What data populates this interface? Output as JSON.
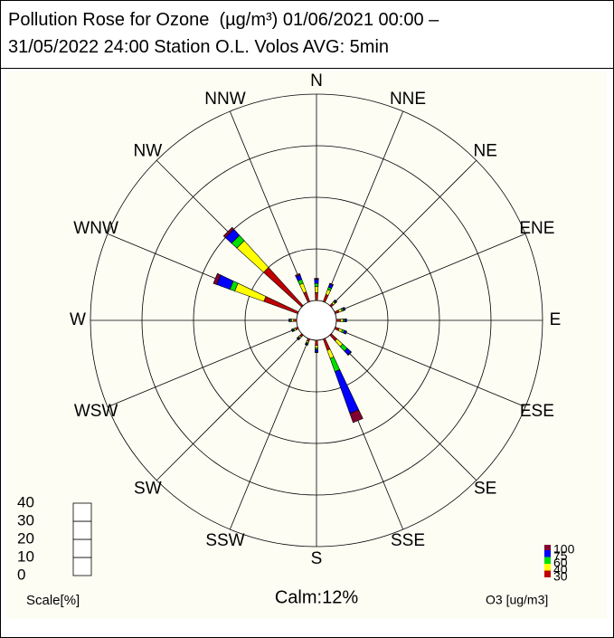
{
  "chart_data": {
    "type": "polar_stacked_bar",
    "title": "Pollution Rose for Ozone  (µg/m³) 01/06/2021 00:00 – 31/05/2022 24:00 Station O.L. Volos AVG: 5min",
    "categories": [
      "N",
      "NNE",
      "NE",
      "ENE",
      "E",
      "ESE",
      "SE",
      "SSE",
      "S",
      "SSW",
      "SW",
      "WSW",
      "W",
      "WNW",
      "NW",
      "NNW"
    ],
    "series": [
      {
        "color": "#c00000",
        "values": [
          1.5,
          1.5,
          0.6,
          0.8,
          0.8,
          0.8,
          1.5,
          2.3,
          1.0,
          0.5,
          0.5,
          0.5,
          0.6,
          7,
          10,
          2
        ]
      },
      {
        "color": "#ffff00",
        "values": [
          1.2,
          1.0,
          0.4,
          0.6,
          0.5,
          0.7,
          1.5,
          1.7,
          0.5,
          0.3,
          0.3,
          0.3,
          0.4,
          6,
          7,
          1.8
        ]
      },
      {
        "color": "#00e000",
        "values": [
          0.6,
          0.5,
          0.2,
          0.3,
          0.3,
          0.4,
          1.2,
          2.7,
          0.3,
          0.2,
          0.2,
          0.2,
          0.2,
          1,
          1.4,
          0.8
        ]
      },
      {
        "color": "#0000ff",
        "values": [
          0.8,
          0.6,
          0.2,
          0.3,
          0.3,
          0.4,
          1.0,
          8.6,
          0.5,
          0.2,
          0.2,
          0.2,
          0.2,
          2.7,
          1.6,
          0.9
        ]
      },
      {
        "color": "#800030",
        "values": [
          0.2,
          0.2,
          0.1,
          0.1,
          0.1,
          0.1,
          0.1,
          1.9,
          0.1,
          0.1,
          0.1,
          0.1,
          0.1,
          0.7,
          0.5,
          0.3
        ]
      }
    ],
    "rlim": [
      0,
      40
    ],
    "rticks": [
      10,
      20,
      30,
      40
    ],
    "scale_ticks": [
      0,
      10,
      20,
      30,
      40
    ],
    "scale_label": "Scale[%]",
    "legend_ticks": [
      30,
      40,
      60,
      75,
      100
    ],
    "legend_label": "O3 [ug/m3]",
    "calm_label": "Calm:12%"
  }
}
